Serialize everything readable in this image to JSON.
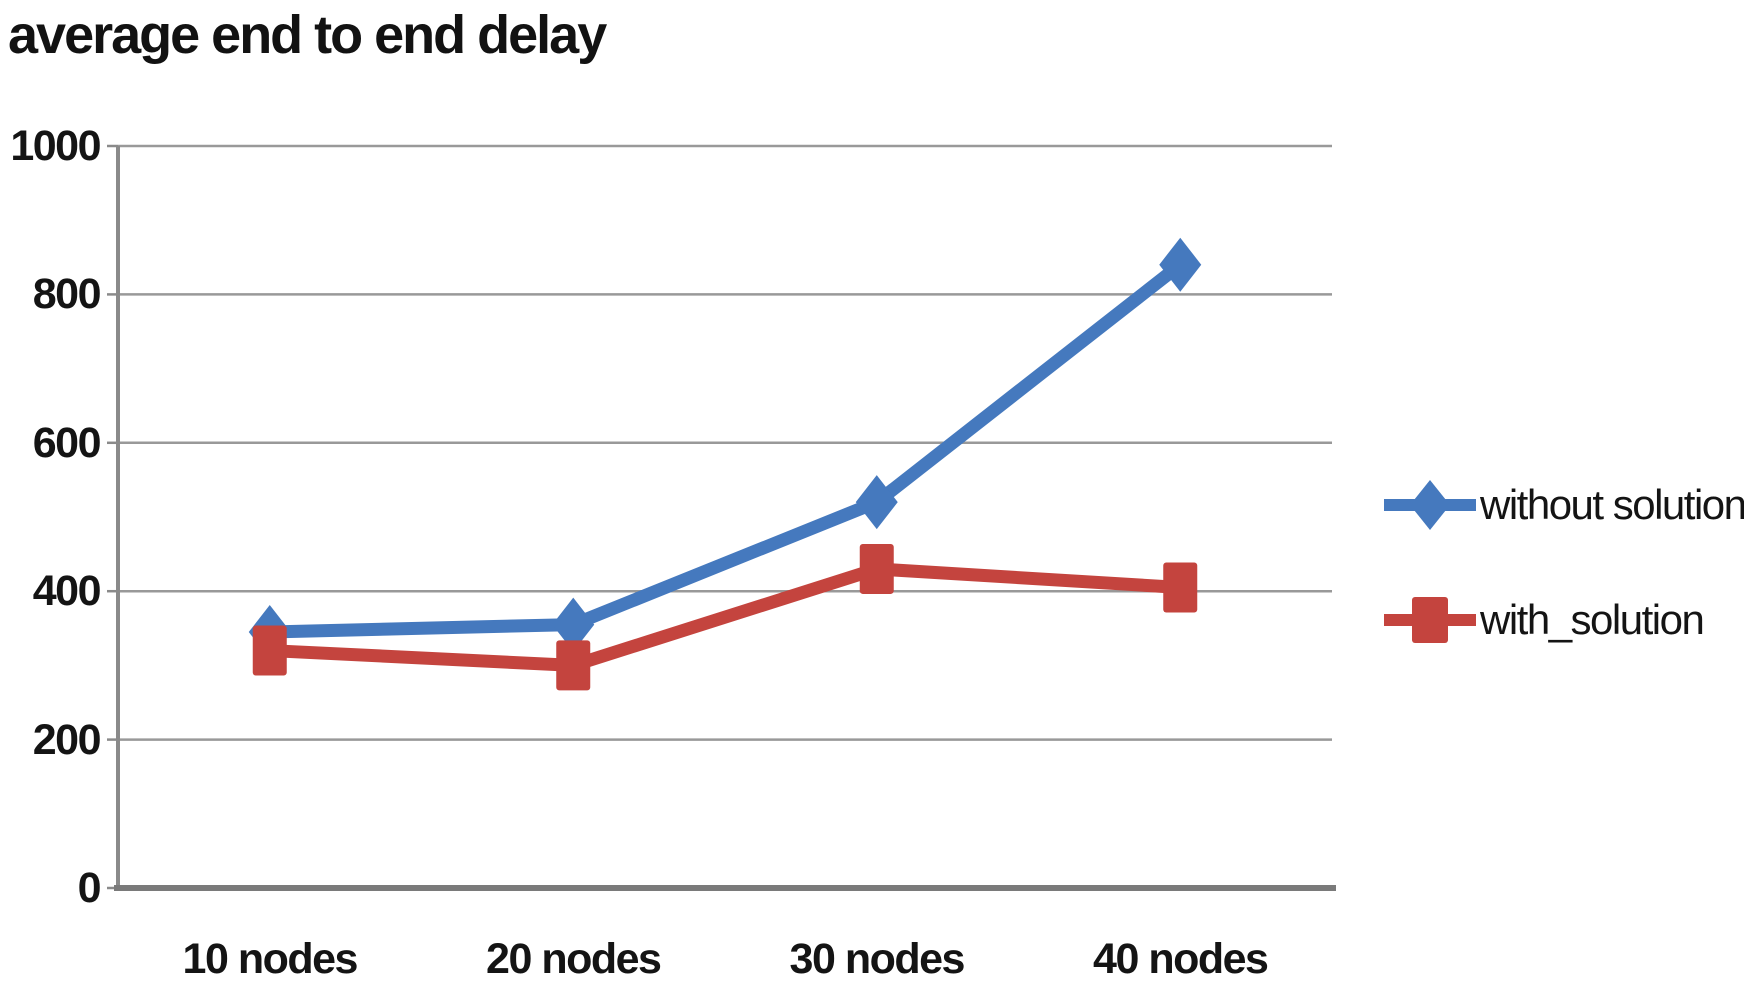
{
  "chart_data": {
    "type": "line",
    "title": "average end to end delay",
    "categories": [
      "10 nodes",
      "20 nodes",
      "30 nodes",
      "40 nodes"
    ],
    "series": [
      {
        "name": "without solution",
        "color": "#4579be",
        "marker": "diamond",
        "values": [
          345,
          355,
          520,
          840
        ]
      },
      {
        "name": "with_solution",
        "color": "#c4443e",
        "marker": "square",
        "values": [
          320,
          300,
          430,
          405
        ]
      }
    ],
    "xlabel": "",
    "ylabel": "",
    "ylim": [
      0,
      1000
    ],
    "yticks": [
      0,
      200,
      400,
      600,
      800,
      1000
    ],
    "grid": "horizontal",
    "legend_position": "right"
  },
  "colors": {
    "gridline": "#999999",
    "axis_left": "#8a8a8a",
    "axis_bottom": "#7a7a7a",
    "text": "#141414",
    "background": "#ffffff"
  }
}
